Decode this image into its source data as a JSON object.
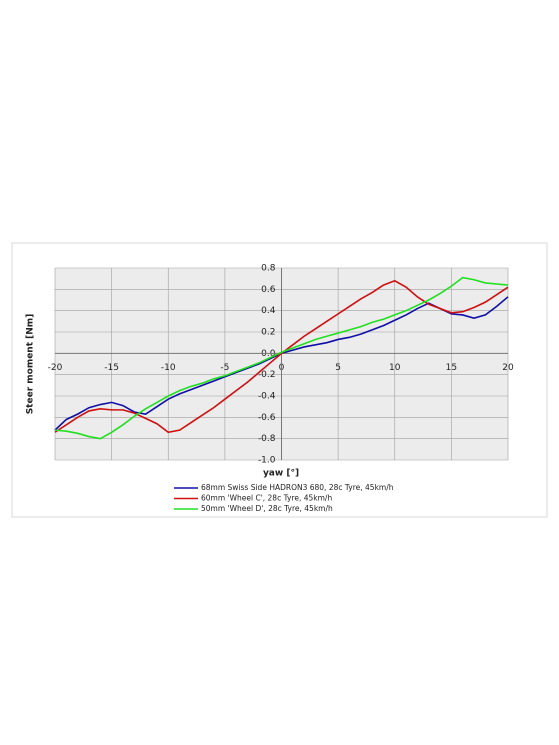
{
  "chart_data": {
    "type": "line",
    "xlabel": "yaw [°]",
    "ylabel": "Steer moment  [Nm]",
    "x": [
      -20,
      -19,
      -18,
      -17,
      -16,
      -15,
      -14,
      -13,
      -12,
      -11,
      -10,
      -9,
      -8,
      -7,
      -6,
      -5,
      -4,
      -3,
      -2,
      -1,
      0,
      1,
      2,
      3,
      4,
      5,
      6,
      7,
      8,
      9,
      10,
      11,
      12,
      13,
      14,
      15,
      16,
      17,
      18,
      19,
      20
    ],
    "series": [
      {
        "name": "68mm Swiss Side HADRON3  680, 28c Tyre, 45km/h",
        "color": "#1010a8",
        "values": [
          -0.72,
          -0.62,
          -0.57,
          -0.51,
          -0.48,
          -0.46,
          -0.49,
          -0.55,
          -0.57,
          -0.5,
          -0.43,
          -0.38,
          -0.34,
          -0.3,
          -0.26,
          -0.22,
          -0.18,
          -0.14,
          -0.1,
          -0.05,
          0.0,
          0.03,
          0.06,
          0.08,
          0.1,
          0.13,
          0.15,
          0.18,
          0.22,
          0.26,
          0.31,
          0.36,
          0.42,
          0.47,
          0.42,
          0.37,
          0.36,
          0.33,
          0.36,
          0.44,
          0.53
        ]
      },
      {
        "name": "60mm 'Wheel C', 28c Tyre, 45km/h",
        "color": "#d01010",
        "values": [
          -0.74,
          -0.67,
          -0.6,
          -0.54,
          -0.52,
          -0.53,
          -0.53,
          -0.56,
          -0.61,
          -0.66,
          -0.74,
          -0.72,
          -0.65,
          -0.58,
          -0.51,
          -0.43,
          -0.35,
          -0.27,
          -0.18,
          -0.09,
          0.0,
          0.08,
          0.16,
          0.23,
          0.3,
          0.37,
          0.44,
          0.51,
          0.57,
          0.64,
          0.68,
          0.62,
          0.53,
          0.46,
          0.42,
          0.38,
          0.39,
          0.43,
          0.48,
          0.55,
          0.62
        ]
      },
      {
        "name": "50mm 'Wheel D', 28c Tyre, 45km/h",
        "color": "#20e020",
        "values": [
          -0.72,
          -0.73,
          -0.75,
          -0.78,
          -0.8,
          -0.74,
          -0.67,
          -0.59,
          -0.52,
          -0.46,
          -0.4,
          -0.35,
          -0.31,
          -0.28,
          -0.24,
          -0.21,
          -0.17,
          -0.13,
          -0.09,
          -0.04,
          0.01,
          0.05,
          0.09,
          0.13,
          0.16,
          0.19,
          0.22,
          0.25,
          0.29,
          0.32,
          0.36,
          0.4,
          0.45,
          0.5,
          0.56,
          0.63,
          0.71,
          0.69,
          0.66,
          0.65,
          0.64
        ]
      }
    ],
    "xlim": [
      -20,
      20
    ],
    "xticks": [
      -20,
      -15,
      -10,
      -5,
      0,
      5,
      10,
      15,
      20
    ],
    "ylim": [
      -1,
      0.8
    ],
    "yticks": [
      0.8,
      0.6,
      0.4,
      0.2,
      {
        "value": 0,
        "label": "0.0"
      },
      -0.2,
      -0.4,
      -0.6,
      -0.8,
      {
        "value": -1,
        "label": "-1.0"
      }
    ],
    "grid": true,
    "legend": "bottom"
  }
}
